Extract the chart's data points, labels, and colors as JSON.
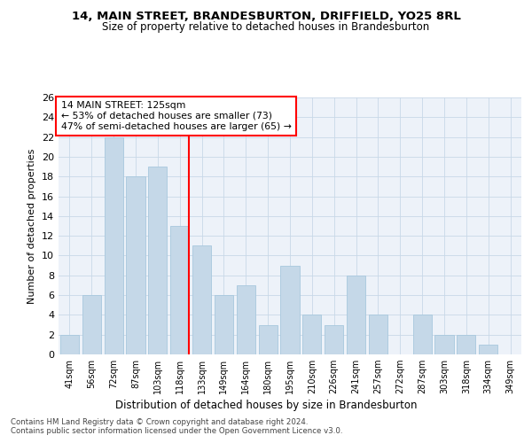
{
  "title": "14, MAIN STREET, BRANDESBURTON, DRIFFIELD, YO25 8RL",
  "subtitle": "Size of property relative to detached houses in Brandesburton",
  "xlabel": "Distribution of detached houses by size in Brandesburton",
  "ylabel": "Number of detached properties",
  "categories": [
    "41sqm",
    "56sqm",
    "72sqm",
    "87sqm",
    "103sqm",
    "118sqm",
    "133sqm",
    "149sqm",
    "164sqm",
    "180sqm",
    "195sqm",
    "210sqm",
    "226sqm",
    "241sqm",
    "257sqm",
    "272sqm",
    "287sqm",
    "303sqm",
    "318sqm",
    "334sqm",
    "349sqm"
  ],
  "values": [
    2,
    6,
    22,
    18,
    19,
    13,
    11,
    6,
    7,
    3,
    9,
    4,
    3,
    8,
    4,
    0,
    4,
    2,
    2,
    1,
    0
  ],
  "bar_color": "#c5d8e8",
  "bar_edgecolor": "#a8c8de",
  "redline_index": 5,
  "annotation_title": "14 MAIN STREET: 125sqm",
  "annotation_line1": "← 53% of detached houses are smaller (73)",
  "annotation_line2": "47% of semi-detached houses are larger (65) →",
  "annotation_box_edgecolor": "red",
  "redline_color": "red",
  "ylim": [
    0,
    26
  ],
  "yticks": [
    0,
    2,
    4,
    6,
    8,
    10,
    12,
    14,
    16,
    18,
    20,
    22,
    24,
    26
  ],
  "grid_color": "#c8d8e8",
  "background_color": "#edf2f9",
  "footer1": "Contains HM Land Registry data © Crown copyright and database right 2024.",
  "footer2": "Contains public sector information licensed under the Open Government Licence v3.0."
}
